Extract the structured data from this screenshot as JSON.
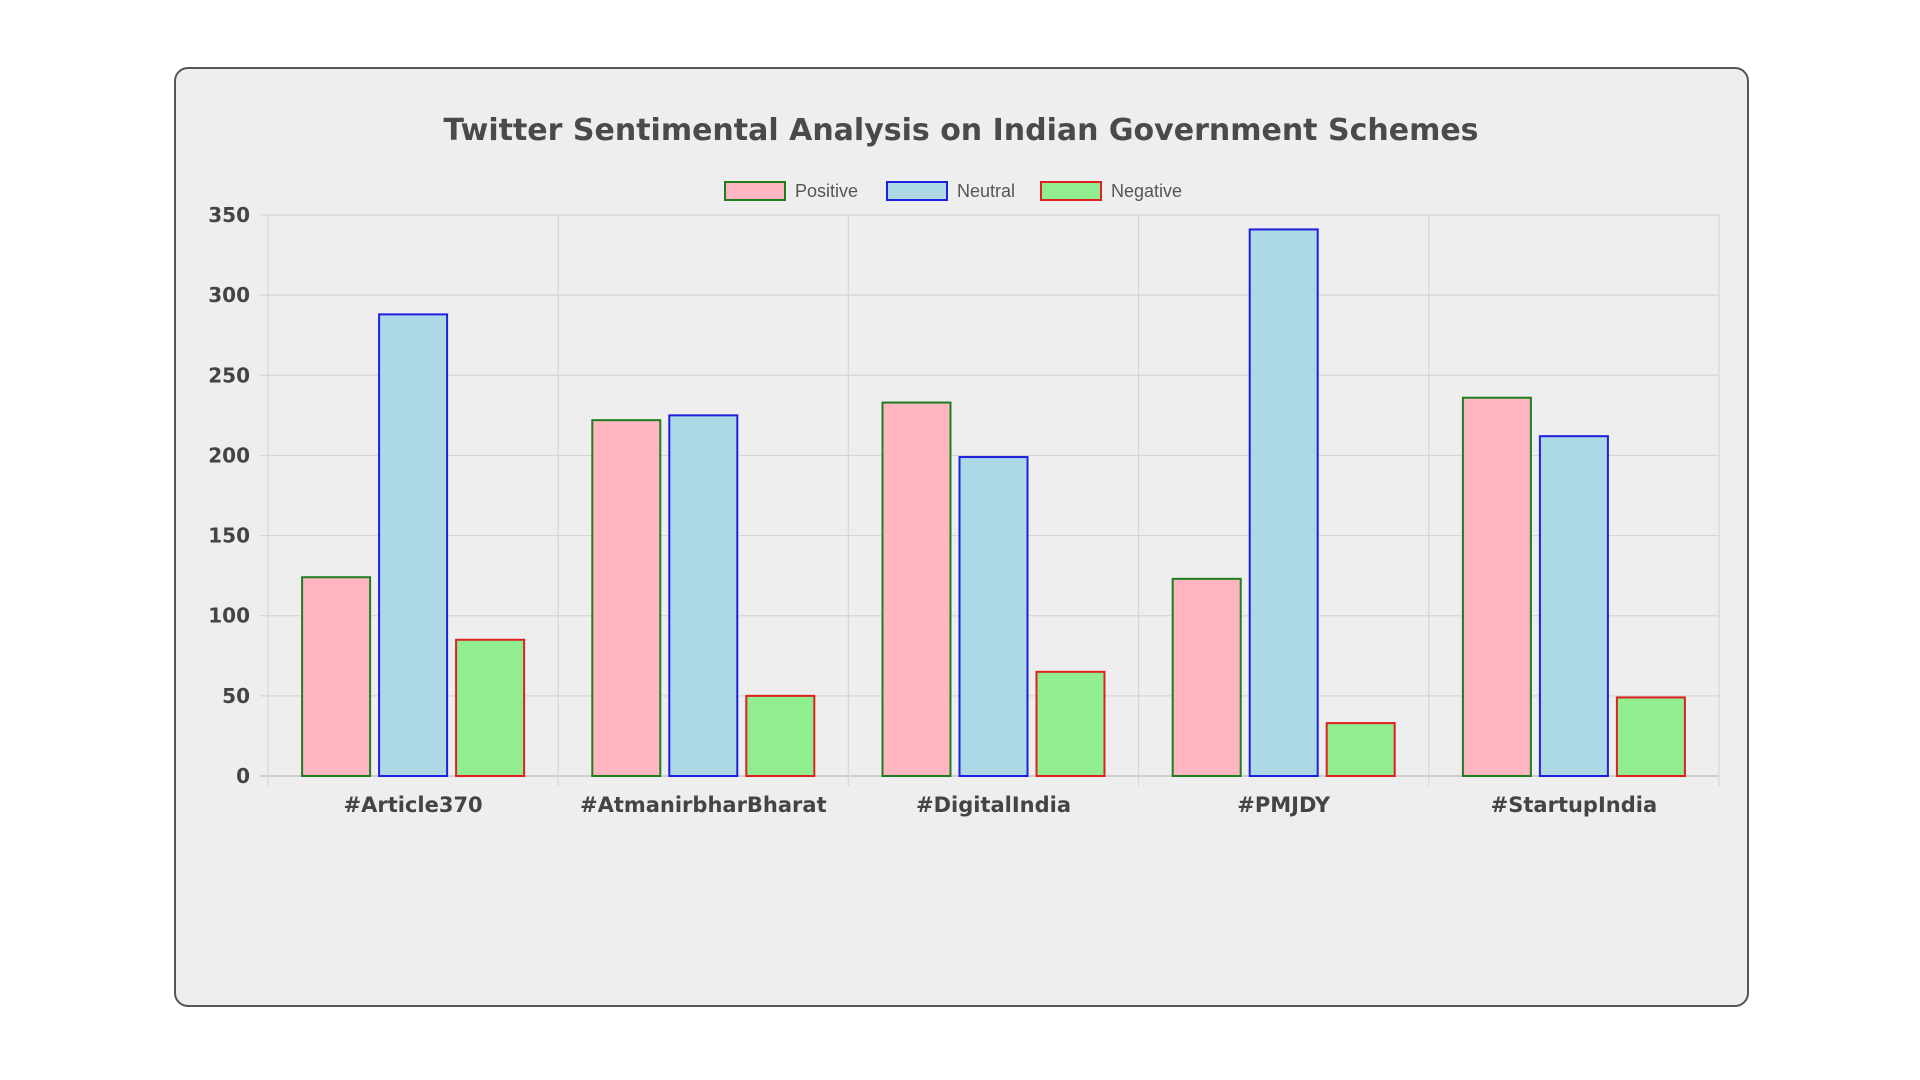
{
  "chart_data": {
    "type": "bar",
    "title": "Twitter Sentimental Analysis on Indian Government Schemes",
    "categories": [
      "#Article370",
      "#AtmanirbharBharat",
      "#DigitalIndia",
      "#PMJDY",
      "#StartupIndia"
    ],
    "series": [
      {
        "name": "Positive",
        "values": [
          124,
          222,
          233,
          123,
          236
        ],
        "fill": "#ffb6c1",
        "stroke": "#1e7d1e"
      },
      {
        "name": "Neutral",
        "values": [
          288,
          225,
          199,
          341,
          212
        ],
        "fill": "#add8e6",
        "stroke": "#1f1fe0"
      },
      {
        "name": "Negative",
        "values": [
          85,
          50,
          65,
          33,
          49
        ],
        "fill": "#90ee90",
        "stroke": "#e02020"
      }
    ],
    "yticks": [
      "0",
      "50",
      "100",
      "150",
      "200",
      "250",
      "300",
      "350"
    ],
    "ylim": [
      0,
      350
    ],
    "grid": true,
    "legend_position": "top-center",
    "xlabel": "",
    "ylabel": ""
  }
}
